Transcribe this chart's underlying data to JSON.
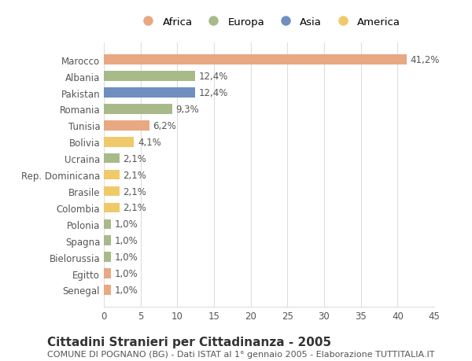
{
  "countries": [
    "Marocco",
    "Albania",
    "Pakistan",
    "Romania",
    "Tunisia",
    "Bolivia",
    "Ucraina",
    "Rep. Dominicana",
    "Brasile",
    "Colombia",
    "Polonia",
    "Spagna",
    "Bielorussia",
    "Egitto",
    "Senegal"
  ],
  "values": [
    41.2,
    12.4,
    12.4,
    9.3,
    6.2,
    4.1,
    2.1,
    2.1,
    2.1,
    2.1,
    1.0,
    1.0,
    1.0,
    1.0,
    1.0
  ],
  "labels": [
    "41,2%",
    "12,4%",
    "12,4%",
    "9,3%",
    "6,2%",
    "4,1%",
    "2,1%",
    "2,1%",
    "2,1%",
    "2,1%",
    "1,0%",
    "1,0%",
    "1,0%",
    "1,0%",
    "1,0%"
  ],
  "continents": [
    "Africa",
    "Europa",
    "Asia",
    "Europa",
    "Africa",
    "America",
    "Europa",
    "America",
    "America",
    "America",
    "Europa",
    "Europa",
    "Europa",
    "Africa",
    "Africa"
  ],
  "continent_colors": {
    "Africa": "#E8A882",
    "Europa": "#A8BA8A",
    "Asia": "#6E8FBF",
    "America": "#F0C96A"
  },
  "legend_order": [
    "Africa",
    "Europa",
    "Asia",
    "America"
  ],
  "title": "Cittadini Stranieri per Cittadinanza - 2005",
  "subtitle": "COMUNE DI POGNANO (BG) - Dati ISTAT al 1° gennaio 2005 - Elaborazione TUTTITALIA.IT",
  "xlim": [
    0,
    45
  ],
  "xticks": [
    0,
    5,
    10,
    15,
    20,
    25,
    30,
    35,
    40,
    45
  ],
  "background_color": "#ffffff",
  "grid_color": "#dddddd",
  "bar_height": 0.6,
  "label_fontsize": 8.5,
  "tick_fontsize": 8.5,
  "title_fontsize": 11,
  "subtitle_fontsize": 8
}
